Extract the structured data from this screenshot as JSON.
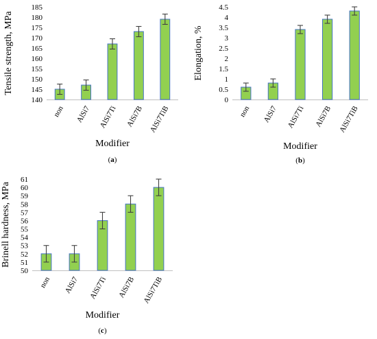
{
  "chart_data": [
    {
      "type": "bar",
      "panel": "(a)",
      "categories": [
        "non",
        "AlSi7",
        "AlSi7Ti",
        "AlSi7B",
        "AlSi7TiB"
      ],
      "values": [
        145,
        147,
        167,
        173,
        179
      ],
      "error": [
        2.5,
        2.5,
        2.5,
        2.5,
        2.5
      ],
      "ylabel": "Tensile strength, MPa",
      "xlabel": "Modifier",
      "ylim": [
        140,
        185
      ],
      "yticks": [
        140,
        145,
        150,
        155,
        160,
        165,
        170,
        175,
        180,
        185
      ],
      "ytick_labels": [
        "140",
        "145",
        "150",
        "155",
        "160",
        "165",
        "170",
        "175",
        "180",
        "185"
      ],
      "grid": false,
      "bar_color": "#92d050",
      "bar_edge_color": "#4472c4"
    },
    {
      "type": "bar",
      "panel": "(b)",
      "categories": [
        "non",
        "AlSi7",
        "AlSi7Ti",
        "AlSi7B",
        "AlSi7TiB"
      ],
      "values": [
        0.6,
        0.8,
        3.4,
        3.9,
        4.3
      ],
      "error": [
        0.2,
        0.2,
        0.2,
        0.2,
        0.2
      ],
      "ylabel": "Elongation, %",
      "xlabel": "Modifier",
      "ylim": [
        0,
        4.5
      ],
      "yticks": [
        0,
        0.5,
        1,
        1.5,
        2,
        2.5,
        3,
        3.5,
        4,
        4.5
      ],
      "ytick_labels": [
        "0",
        "0.5",
        "1",
        "1.5",
        "2",
        "2.5",
        "3",
        "3.5",
        "4",
        "4.5"
      ],
      "grid": false,
      "bar_color": "#92d050",
      "bar_edge_color": "#4472c4"
    },
    {
      "type": "bar",
      "panel": "(c)",
      "categories": [
        "non",
        "AlSi7",
        "AlSi7Ti",
        "AlSi7B",
        "AlSi7TiB"
      ],
      "values": [
        52,
        52,
        56,
        58,
        60
      ],
      "error": [
        1,
        1,
        1,
        1,
        1
      ],
      "ylabel": "Brinell hardness, MPa",
      "xlabel": "Modifier",
      "ylim": [
        50,
        61
      ],
      "yticks": [
        50,
        51,
        52,
        53,
        54,
        55,
        56,
        57,
        58,
        59,
        60,
        61
      ],
      "ytick_labels": [
        "50",
        "51",
        "52",
        "53",
        "54",
        "55",
        "56",
        "57",
        "58",
        "59",
        "60",
        "61"
      ],
      "grid": false,
      "bar_color": "#92d050",
      "bar_edge_color": "#4472c4"
    }
  ]
}
